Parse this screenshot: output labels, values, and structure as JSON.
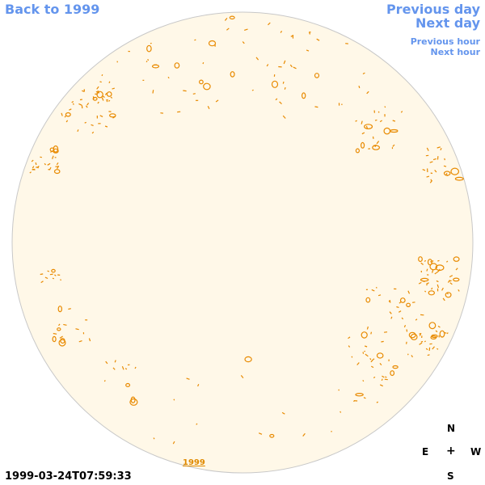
{
  "nav": {
    "back": "Back to 1999",
    "previous_day": "Previous day",
    "next_day": "Next day",
    "previous_hour": "Previous hour",
    "next_hour": "Next hour"
  },
  "timestamp": "1999-03-24T07:59:33",
  "year_link": "1999",
  "compass": {
    "n": "N",
    "e": "E",
    "center": "+",
    "w": "W",
    "s": "S"
  },
  "colors": {
    "disk_fill": "#fff8e8",
    "disk_edge": "#c8c8c8",
    "contour": "#e88a00",
    "link": "#6495ed"
  }
}
